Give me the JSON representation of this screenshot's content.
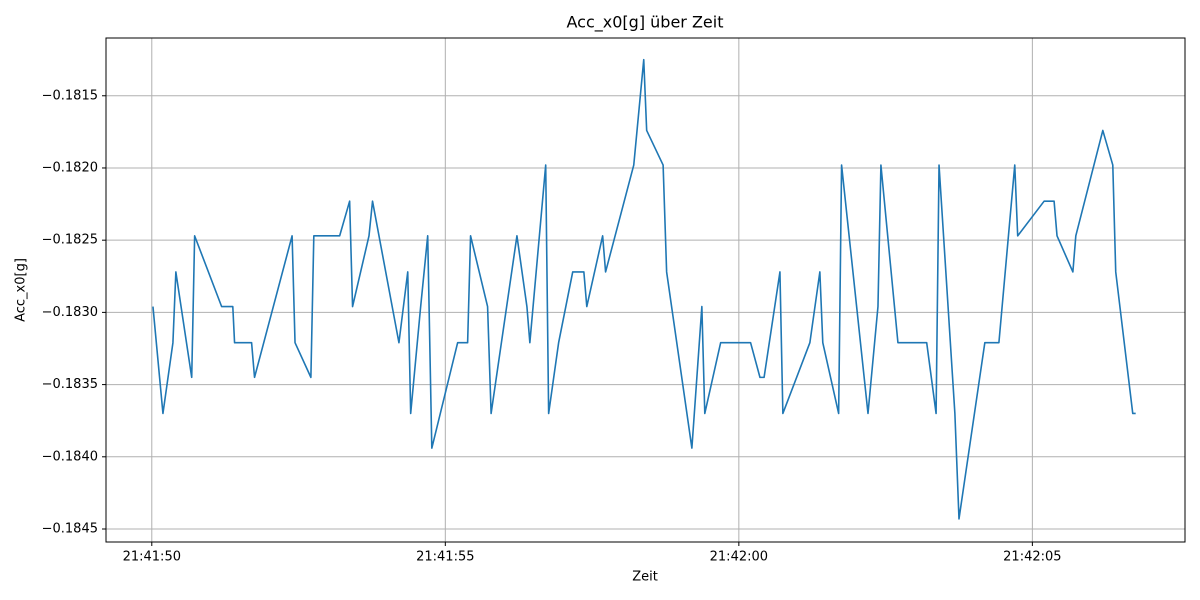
{
  "chart_data": {
    "type": "line",
    "title": "Acc_x0[g] über Zeit",
    "x_label": "Zeit",
    "y_label": "Acc_x0[g]",
    "grid": true,
    "xlim": [
      78109.22,
      78127.6
    ],
    "ylim": [
      -0.18459,
      -0.1811
    ],
    "xticks": [
      {
        "value": 78110,
        "label": "21:41:50"
      },
      {
        "value": 78115,
        "label": "21:41:55"
      },
      {
        "value": 78120,
        "label": "21:42:00"
      },
      {
        "value": 78125,
        "label": "21:42:05"
      }
    ],
    "yticks": [
      {
        "value": -0.1845,
        "label": "−0.1845"
      },
      {
        "value": -0.184,
        "label": "−0.1840"
      },
      {
        "value": -0.1835,
        "label": "−0.1835"
      },
      {
        "value": -0.183,
        "label": "−0.1830"
      },
      {
        "value": -0.1825,
        "label": "−0.1825"
      },
      {
        "value": -0.182,
        "label": "−0.1820"
      },
      {
        "value": -0.1815,
        "label": "−0.1815"
      }
    ],
    "x": [
      78110.02,
      78110.19,
      78110.36,
      78110.41,
      78110.68,
      78110.73,
      78111.19,
      78111.38,
      78111.41,
      78111.7,
      78111.75,
      78112.39,
      78112.44,
      78112.71,
      78112.76,
      78113.2,
      78113.37,
      78113.42,
      78113.7,
      78113.76,
      78114.21,
      78114.36,
      78114.41,
      78114.58,
      78114.7,
      78114.77,
      78115.21,
      78115.38,
      78115.43,
      78115.72,
      78115.78,
      78116.22,
      78116.39,
      78116.44,
      78116.71,
      78116.76,
      78116.93,
      78117.17,
      78117.36,
      78117.41,
      78117.68,
      78117.73,
      78118.21,
      78118.38,
      78118.43,
      78118.71,
      78118.77,
      78119.2,
      78119.37,
      78119.42,
      78119.69,
      78120.2,
      78120.36,
      78120.43,
      78120.7,
      78120.75,
      78121.21,
      78121.38,
      78121.43,
      78121.7,
      78121.75,
      78122.2,
      78122.37,
      78122.42,
      78122.71,
      78123.2,
      78123.36,
      78123.41,
      78123.68,
      78123.75,
      78124.19,
      78124.43,
      78124.7,
      78124.75,
      78125.2,
      78125.37,
      78125.42,
      78125.69,
      78125.74,
      78126.2,
      78126.37,
      78126.42,
      78126.71,
      78126.76
    ],
    "series": [
      {
        "name": "Acc_x0[g]",
        "color": "#1f77b4",
        "values": [
          -0.18296,
          -0.1837,
          -0.18321,
          -0.18272,
          -0.18345,
          -0.18247,
          -0.18296,
          -0.18296,
          -0.18321,
          -0.18321,
          -0.18345,
          -0.18247,
          -0.18321,
          -0.18345,
          -0.18247,
          -0.18247,
          -0.18223,
          -0.18296,
          -0.18247,
          -0.18223,
          -0.18321,
          -0.18272,
          -0.1837,
          -0.18296,
          -0.18247,
          -0.18394,
          -0.18321,
          -0.18321,
          -0.18247,
          -0.18296,
          -0.1837,
          -0.18247,
          -0.18296,
          -0.18321,
          -0.18198,
          -0.1837,
          -0.18321,
          -0.18272,
          -0.18272,
          -0.18296,
          -0.18247,
          -0.18272,
          -0.18198,
          -0.18125,
          -0.18174,
          -0.18198,
          -0.18272,
          -0.18394,
          -0.18296,
          -0.1837,
          -0.18321,
          -0.18321,
          -0.18345,
          -0.18345,
          -0.18272,
          -0.1837,
          -0.18321,
          -0.18272,
          -0.18321,
          -0.1837,
          -0.18198,
          -0.1837,
          -0.18296,
          -0.18198,
          -0.18321,
          -0.18321,
          -0.1837,
          -0.18198,
          -0.1837,
          -0.18443,
          -0.18321,
          -0.18321,
          -0.18198,
          -0.18247,
          -0.18223,
          -0.18223,
          -0.18247,
          -0.18272,
          -0.18247,
          -0.18174,
          -0.18198,
          -0.18272,
          -0.1837,
          -0.1837
        ]
      }
    ]
  }
}
